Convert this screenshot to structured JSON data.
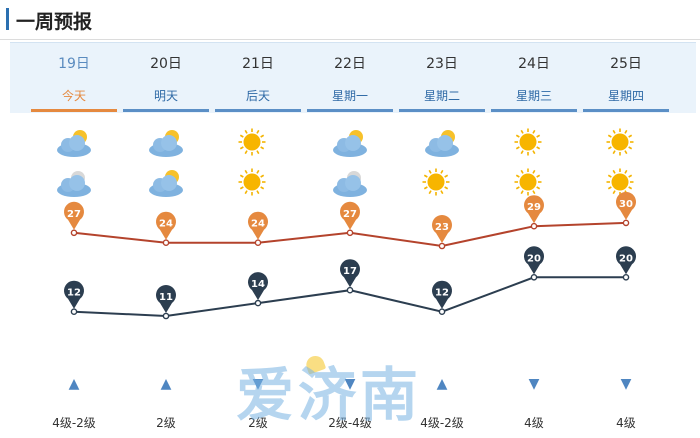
{
  "section_title": "一周预报",
  "days": [
    {
      "date": "19日",
      "week": "今天",
      "day_icon": "partly-cloudy-icon",
      "night_icon": "cloudy-night-icon",
      "high": "27",
      "low": "12",
      "wind_direction": "up",
      "wind_level": "4级-2级"
    },
    {
      "date": "20日",
      "week": "明天",
      "day_icon": "partly-cloudy-icon",
      "night_icon": "partly-cloudy-icon",
      "high": "24",
      "low": "11",
      "wind_direction": "up",
      "wind_level": "2级"
    },
    {
      "date": "21日",
      "week": "后天",
      "day_icon": "sun-icon",
      "night_icon": "sun-icon",
      "high": "24",
      "low": "14",
      "wind_direction": "down",
      "wind_level": "2级"
    },
    {
      "date": "22日",
      "week": "星期一",
      "day_icon": "partly-cloudy-icon",
      "night_icon": "cloudy-night-icon",
      "high": "27",
      "low": "17",
      "wind_direction": "down",
      "wind_level": "2级-4级"
    },
    {
      "date": "23日",
      "week": "星期二",
      "day_icon": "partly-cloudy-icon",
      "night_icon": "sun-icon",
      "high": "23",
      "low": "12",
      "wind_direction": "up",
      "wind_level": "4级-2级"
    },
    {
      "date": "24日",
      "week": "星期三",
      "day_icon": "sun-icon",
      "night_icon": "sun-icon",
      "high": "29",
      "low": "20",
      "wind_direction": "down",
      "wind_level": "4级"
    },
    {
      "date": "25日",
      "week": "星期四",
      "day_icon": "sun-icon",
      "night_icon": "sun-icon",
      "high": "30",
      "low": "20",
      "wind_direction": "down",
      "wind_level": "4级"
    }
  ],
  "active_index": 0,
  "colors": {
    "high_line": "#b4432c",
    "high_marker": "#e5893f",
    "low_line": "#2c3e50",
    "low_marker": "#2c3e50",
    "accent": "#2a6fb0"
  },
  "watermark": "爱济南"
}
